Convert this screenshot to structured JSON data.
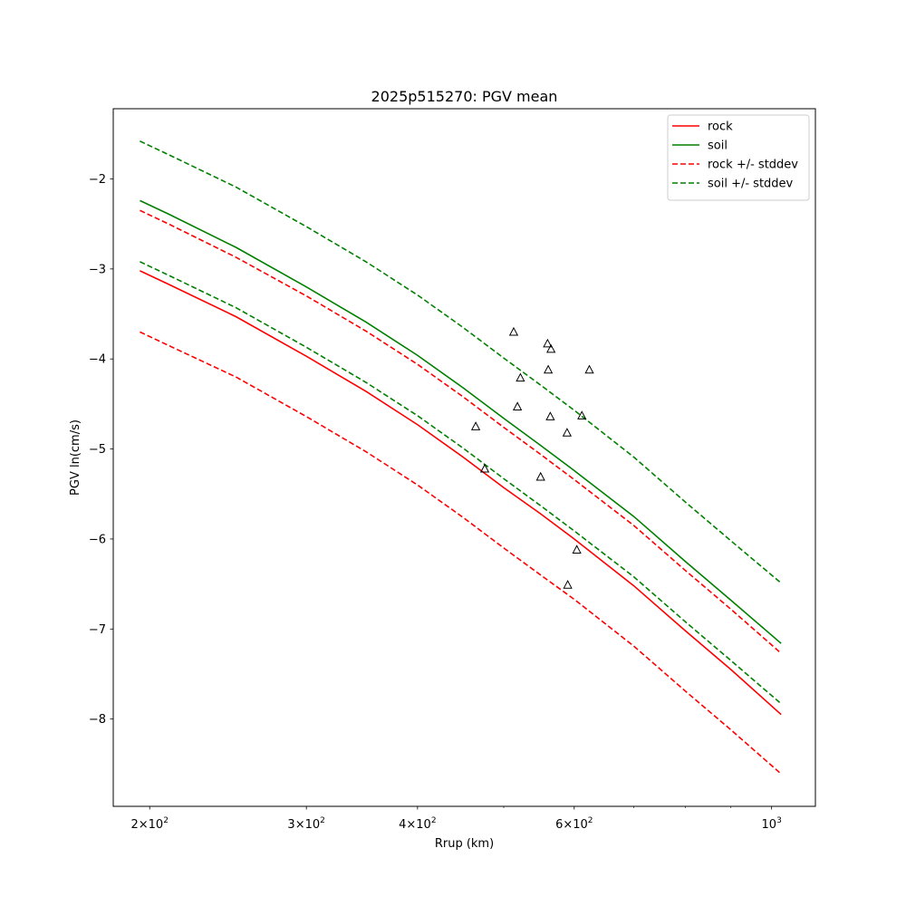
{
  "chart_data": {
    "type": "line",
    "title": "2025p515270: PGV mean",
    "xlabel": "Rrup (km)",
    "ylabel": "PGV ln(cm/s)",
    "xscale": "log",
    "xlim": [
      182,
      1120
    ],
    "ylim": [
      -8.97,
      -1.22
    ],
    "x_ticks": [
      {
        "value": 200,
        "base": "2",
        "exp": "2"
      },
      {
        "value": 300,
        "base": "3",
        "exp": "2"
      },
      {
        "value": 400,
        "base": "4",
        "exp": "2"
      },
      {
        "value": 600,
        "base": "6",
        "exp": "2"
      },
      {
        "value": 1000,
        "base": "",
        "exp": "3"
      }
    ],
    "x_minor_ticks": [
      500,
      700,
      800,
      900
    ],
    "y_ticks": [
      {
        "value": -2,
        "label": "−2"
      },
      {
        "value": -3,
        "label": "−3"
      },
      {
        "value": -4,
        "label": "−4"
      },
      {
        "value": -5,
        "label": "−5"
      },
      {
        "value": -6,
        "label": "−6"
      },
      {
        "value": -7,
        "label": "−7"
      },
      {
        "value": -8,
        "label": "−8"
      }
    ],
    "grid": false,
    "legend_position": "top-right",
    "series": [
      {
        "name": "rock",
        "color": "#ff0000",
        "style": "solid",
        "x": [
          195,
          210,
          250,
          300,
          350,
          400,
          450,
          500,
          550,
          600,
          700,
          800,
          900,
          1025
        ],
        "y": [
          -3.02,
          -3.17,
          -3.53,
          -3.97,
          -4.36,
          -4.73,
          -5.09,
          -5.43,
          -5.72,
          -6.0,
          -6.52,
          -7.02,
          -7.45,
          -7.95
        ]
      },
      {
        "name": "soil",
        "color": "#008000",
        "style": "solid",
        "x": [
          195,
          210,
          250,
          300,
          350,
          400,
          450,
          500,
          550,
          600,
          700,
          800,
          900,
          1025
        ],
        "y": [
          -2.24,
          -2.39,
          -2.76,
          -3.2,
          -3.59,
          -3.96,
          -4.32,
          -4.66,
          -4.96,
          -5.24,
          -5.75,
          -6.25,
          -6.68,
          -7.16
        ]
      },
      {
        "name": "rock +/- stddev",
        "color": "#ff0000",
        "style": "dashed",
        "x": [
          195,
          210,
          250,
          300,
          350,
          400,
          450,
          500,
          550,
          600,
          700,
          800,
          900,
          1025
        ],
        "y": [
          -2.35,
          -2.5,
          -2.87,
          -3.3,
          -3.69,
          -4.06,
          -4.42,
          -4.76,
          -5.06,
          -5.34,
          -5.85,
          -6.35,
          -6.78,
          -7.27
        ]
      },
      {
        "name": "",
        "color": "#ff0000",
        "style": "dashed",
        "x": [
          195,
          210,
          250,
          300,
          350,
          400,
          450,
          500,
          550,
          600,
          700,
          800,
          900,
          1025
        ],
        "y": [
          -3.7,
          -3.85,
          -4.2,
          -4.64,
          -5.03,
          -5.4,
          -5.76,
          -6.1,
          -6.4,
          -6.67,
          -7.19,
          -7.69,
          -8.12,
          -8.61
        ]
      },
      {
        "name": "soil +/- stddev",
        "color": "#008000",
        "style": "dashed",
        "x": [
          195,
          210,
          250,
          300,
          350,
          400,
          450,
          500,
          550,
          600,
          700,
          800,
          900,
          1025
        ],
        "y": [
          -1.58,
          -1.73,
          -2.09,
          -2.53,
          -2.92,
          -3.29,
          -3.65,
          -3.99,
          -4.29,
          -4.57,
          -5.09,
          -5.59,
          -6.02,
          -6.49
        ]
      },
      {
        "name": "",
        "color": "#008000",
        "style": "dashed",
        "x": [
          195,
          210,
          250,
          300,
          350,
          400,
          450,
          500,
          550,
          600,
          700,
          800,
          900,
          1025
        ],
        "y": [
          -2.92,
          -3.07,
          -3.43,
          -3.87,
          -4.26,
          -4.63,
          -4.99,
          -5.33,
          -5.63,
          -5.91,
          -6.42,
          -6.92,
          -7.35,
          -7.83
        ]
      }
    ],
    "observations": {
      "marker": "triangle",
      "x": [
        513,
        560,
        565,
        522,
        561,
        518,
        564,
        612,
        624,
        465,
        589,
        476,
        550,
        604,
        590
      ],
      "y": [
        -3.7,
        -3.83,
        -3.89,
        -4.21,
        -4.12,
        -4.53,
        -4.64,
        -4.63,
        -4.12,
        -4.75,
        -4.82,
        -5.22,
        -5.31,
        -6.12,
        -6.51
      ]
    }
  }
}
